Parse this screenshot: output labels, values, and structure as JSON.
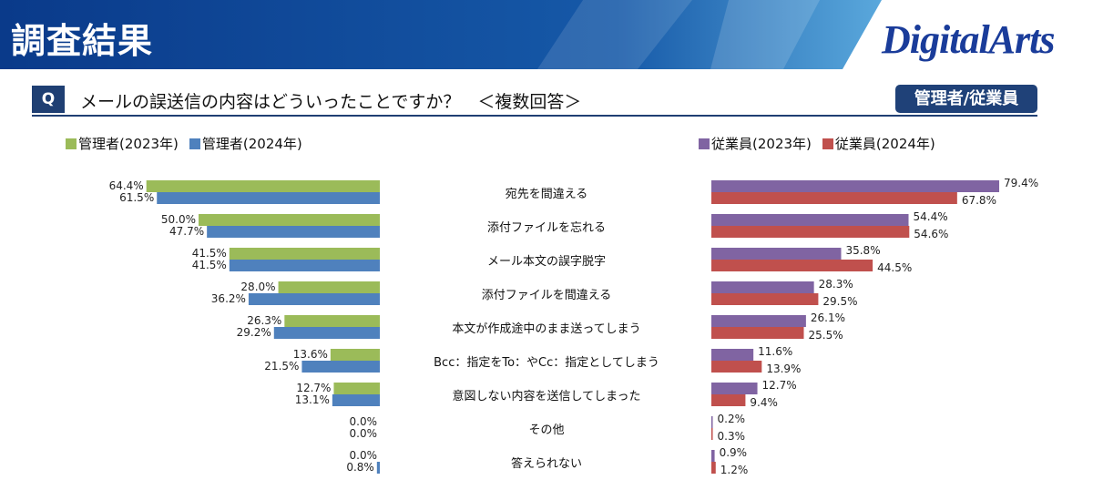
{
  "header": {
    "title": "調査結果",
    "logo": "DigitalArts"
  },
  "question": {
    "badge": "Q",
    "text": "メールの誤送信の内容はどういったことですか？　＜複数回答＞",
    "role": "管理者/従業員"
  },
  "colors": {
    "admin2023": "#9bbb59",
    "admin2024": "#4f81bd",
    "emp2023": "#8064a2",
    "emp2024": "#c0504d"
  },
  "chart_data": {
    "type": "bar",
    "categories": [
      "宛先を間違える",
      "添付ファイルを忘れる",
      "メール本文の誤字脱字",
      "添付ファイルを間違える",
      "本文が作成途中のまま送ってしまう",
      "Bcc：指定をTo：やCc：指定としてしまう",
      "意図しない内容を送信してしまった",
      "その他",
      "答えられない"
    ],
    "legend_left": [
      "管理者(2023年)",
      "管理者(2024年)"
    ],
    "legend_right": [
      "従業員(2023年)",
      "従業員(2024年)"
    ],
    "series": [
      {
        "name": "管理者(2023年)",
        "values": [
          64.4,
          50.0,
          41.5,
          28.0,
          26.3,
          13.6,
          12.7,
          0.0,
          0.0
        ]
      },
      {
        "name": "管理者(2024年)",
        "values": [
          61.5,
          47.7,
          41.5,
          36.2,
          29.2,
          21.5,
          13.1,
          0.0,
          0.8
        ]
      },
      {
        "name": "従業員(2023年)",
        "values": [
          79.4,
          54.4,
          35.8,
          28.3,
          26.1,
          11.6,
          12.7,
          0.2,
          0.9
        ]
      },
      {
        "name": "従業員(2024年)",
        "values": [
          67.8,
          54.6,
          44.5,
          29.5,
          25.5,
          13.9,
          9.4,
          0.3,
          1.2
        ]
      }
    ],
    "unit": "%"
  }
}
